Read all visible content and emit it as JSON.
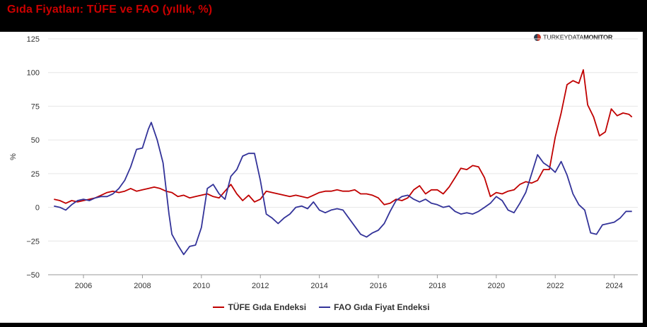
{
  "page": {
    "title": "Gıda Fiyatları: TÜFE ve FAO (yıllık, %)"
  },
  "logo": {
    "text_light": "TURKEYDATA",
    "text_bold": "MONITOR"
  },
  "chart_data": {
    "type": "line",
    "title": "Gıda Fiyatları: TÜFE ve FAO (yıllık, %)",
    "ylabel": "%",
    "xlabel": "",
    "ylim": [
      -50,
      125
    ],
    "yticks": [
      -50,
      -25,
      0,
      25,
      50,
      75,
      100,
      125
    ],
    "xlim": [
      2004.8,
      2024.8
    ],
    "xticks": [
      2006,
      2008,
      2010,
      2012,
      2014,
      2016,
      2018,
      2020,
      2022,
      2024
    ],
    "grid": "horizontal",
    "legend_position": "bottom-center",
    "series": [
      {
        "name": "TÜFE Gıda Endeksi",
        "color": "#c00000",
        "points": [
          [
            2005.0,
            6
          ],
          [
            2005.2,
            5
          ],
          [
            2005.4,
            3
          ],
          [
            2005.6,
            5
          ],
          [
            2005.8,
            4
          ],
          [
            2006.0,
            5
          ],
          [
            2006.2,
            6
          ],
          [
            2006.4,
            7
          ],
          [
            2006.6,
            9
          ],
          [
            2006.8,
            11
          ],
          [
            2007.0,
            12
          ],
          [
            2007.2,
            11
          ],
          [
            2007.4,
            12
          ],
          [
            2007.6,
            14
          ],
          [
            2007.8,
            12
          ],
          [
            2008.0,
            13
          ],
          [
            2008.2,
            14
          ],
          [
            2008.4,
            15
          ],
          [
            2008.6,
            14
          ],
          [
            2008.8,
            12
          ],
          [
            2009.0,
            11
          ],
          [
            2009.2,
            8
          ],
          [
            2009.4,
            9
          ],
          [
            2009.6,
            7
          ],
          [
            2009.8,
            8
          ],
          [
            2010.0,
            9
          ],
          [
            2010.2,
            10
          ],
          [
            2010.4,
            8
          ],
          [
            2010.6,
            7
          ],
          [
            2010.8,
            12
          ],
          [
            2011.0,
            17
          ],
          [
            2011.2,
            10
          ],
          [
            2011.4,
            5
          ],
          [
            2011.6,
            9
          ],
          [
            2011.8,
            4
          ],
          [
            2012.0,
            6
          ],
          [
            2012.2,
            12
          ],
          [
            2012.4,
            11
          ],
          [
            2012.6,
            10
          ],
          [
            2012.8,
            9
          ],
          [
            2013.0,
            8
          ],
          [
            2013.2,
            9
          ],
          [
            2013.4,
            8
          ],
          [
            2013.6,
            7
          ],
          [
            2013.8,
            9
          ],
          [
            2014.0,
            11
          ],
          [
            2014.2,
            12
          ],
          [
            2014.4,
            12
          ],
          [
            2014.6,
            13
          ],
          [
            2014.8,
            12
          ],
          [
            2015.0,
            12
          ],
          [
            2015.2,
            13
          ],
          [
            2015.4,
            10
          ],
          [
            2015.6,
            10
          ],
          [
            2015.8,
            9
          ],
          [
            2016.0,
            7
          ],
          [
            2016.2,
            2
          ],
          [
            2016.4,
            3
          ],
          [
            2016.6,
            6
          ],
          [
            2016.8,
            5
          ],
          [
            2017.0,
            7
          ],
          [
            2017.2,
            13
          ],
          [
            2017.4,
            16
          ],
          [
            2017.6,
            10
          ],
          [
            2017.8,
            13
          ],
          [
            2018.0,
            13
          ],
          [
            2018.2,
            10
          ],
          [
            2018.4,
            15
          ],
          [
            2018.6,
            22
          ],
          [
            2018.8,
            29
          ],
          [
            2019.0,
            28
          ],
          [
            2019.2,
            31
          ],
          [
            2019.4,
            30
          ],
          [
            2019.6,
            22
          ],
          [
            2019.8,
            8
          ],
          [
            2020.0,
            11
          ],
          [
            2020.2,
            10
          ],
          [
            2020.4,
            12
          ],
          [
            2020.6,
            13
          ],
          [
            2020.8,
            17
          ],
          [
            2021.0,
            19
          ],
          [
            2021.2,
            18
          ],
          [
            2021.4,
            20
          ],
          [
            2021.6,
            28
          ],
          [
            2021.8,
            28
          ],
          [
            2022.0,
            52
          ],
          [
            2022.2,
            70
          ],
          [
            2022.4,
            91
          ],
          [
            2022.6,
            94
          ],
          [
            2022.8,
            92
          ],
          [
            2022.95,
            102
          ],
          [
            2023.1,
            76
          ],
          [
            2023.3,
            67
          ],
          [
            2023.5,
            53
          ],
          [
            2023.7,
            56
          ],
          [
            2023.9,
            73
          ],
          [
            2024.1,
            68
          ],
          [
            2024.3,
            70
          ],
          [
            2024.5,
            69
          ],
          [
            2024.6,
            67
          ]
        ]
      },
      {
        "name": "FAO Gıda Fiyat Endeksi",
        "color": "#333399",
        "points": [
          [
            2005.0,
            1
          ],
          [
            2005.2,
            0
          ],
          [
            2005.4,
            -2
          ],
          [
            2005.6,
            2
          ],
          [
            2005.8,
            5
          ],
          [
            2006.0,
            6
          ],
          [
            2006.2,
            5
          ],
          [
            2006.4,
            7
          ],
          [
            2006.6,
            8
          ],
          [
            2006.8,
            8
          ],
          [
            2007.0,
            10
          ],
          [
            2007.2,
            14
          ],
          [
            2007.4,
            20
          ],
          [
            2007.6,
            30
          ],
          [
            2007.8,
            43
          ],
          [
            2008.0,
            44
          ],
          [
            2008.2,
            58
          ],
          [
            2008.3,
            63
          ],
          [
            2008.5,
            50
          ],
          [
            2008.7,
            33
          ],
          [
            2008.9,
            -5
          ],
          [
            2009.0,
            -20
          ],
          [
            2009.2,
            -28
          ],
          [
            2009.4,
            -35
          ],
          [
            2009.6,
            -29
          ],
          [
            2009.8,
            -28
          ],
          [
            2010.0,
            -15
          ],
          [
            2010.2,
            14
          ],
          [
            2010.4,
            17
          ],
          [
            2010.6,
            10
          ],
          [
            2010.8,
            6
          ],
          [
            2011.0,
            23
          ],
          [
            2011.2,
            28
          ],
          [
            2011.4,
            38
          ],
          [
            2011.6,
            40
          ],
          [
            2011.8,
            40
          ],
          [
            2012.0,
            20
          ],
          [
            2012.2,
            -5
          ],
          [
            2012.4,
            -8
          ],
          [
            2012.6,
            -12
          ],
          [
            2012.8,
            -8
          ],
          [
            2013.0,
            -5
          ],
          [
            2013.2,
            0
          ],
          [
            2013.4,
            1
          ],
          [
            2013.6,
            -1
          ],
          [
            2013.8,
            4
          ],
          [
            2014.0,
            -2
          ],
          [
            2014.2,
            -4
          ],
          [
            2014.4,
            -2
          ],
          [
            2014.6,
            -1
          ],
          [
            2014.8,
            -2
          ],
          [
            2015.0,
            -8
          ],
          [
            2015.2,
            -14
          ],
          [
            2015.4,
            -20
          ],
          [
            2015.6,
            -22
          ],
          [
            2015.8,
            -19
          ],
          [
            2016.0,
            -17
          ],
          [
            2016.2,
            -12
          ],
          [
            2016.4,
            -3
          ],
          [
            2016.6,
            5
          ],
          [
            2016.8,
            8
          ],
          [
            2017.0,
            9
          ],
          [
            2017.2,
            6
          ],
          [
            2017.4,
            4
          ],
          [
            2017.6,
            6
          ],
          [
            2017.8,
            3
          ],
          [
            2018.0,
            2
          ],
          [
            2018.2,
            0
          ],
          [
            2018.4,
            1
          ],
          [
            2018.6,
            -3
          ],
          [
            2018.8,
            -5
          ],
          [
            2019.0,
            -4
          ],
          [
            2019.2,
            -5
          ],
          [
            2019.4,
            -3
          ],
          [
            2019.6,
            0
          ],
          [
            2019.8,
            3
          ],
          [
            2020.0,
            8
          ],
          [
            2020.2,
            5
          ],
          [
            2020.4,
            -2
          ],
          [
            2020.6,
            -4
          ],
          [
            2020.8,
            3
          ],
          [
            2021.0,
            11
          ],
          [
            2021.2,
            25
          ],
          [
            2021.4,
            39
          ],
          [
            2021.6,
            33
          ],
          [
            2021.8,
            30
          ],
          [
            2022.0,
            26
          ],
          [
            2022.2,
            34
          ],
          [
            2022.4,
            24
          ],
          [
            2022.6,
            10
          ],
          [
            2022.8,
            2
          ],
          [
            2023.0,
            -2
          ],
          [
            2023.2,
            -19
          ],
          [
            2023.4,
            -20
          ],
          [
            2023.6,
            -13
          ],
          [
            2023.8,
            -12
          ],
          [
            2024.0,
            -11
          ],
          [
            2024.2,
            -8
          ],
          [
            2024.4,
            -3
          ],
          [
            2024.6,
            -3
          ]
        ]
      }
    ]
  }
}
